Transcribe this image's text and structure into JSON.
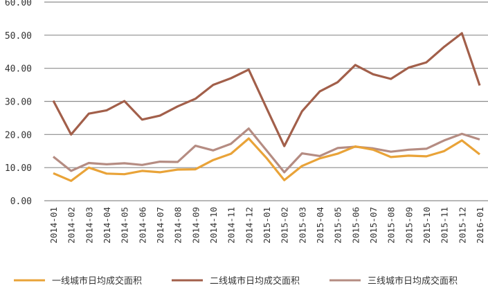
{
  "chart_data": {
    "type": "line",
    "title": "",
    "xlabel": "",
    "ylabel": "",
    "ylim": [
      0,
      60
    ],
    "yticks": [
      "0.00",
      "10.00",
      "20.00",
      "30.00",
      "40.00",
      "50.00",
      "60.00"
    ],
    "grid": true,
    "legend_position": "bottom",
    "categories": [
      "2014-01",
      "2014-02",
      "2014-03",
      "2014-04",
      "2014-05",
      "2014-06",
      "2014-07",
      "2014-08",
      "2014-09",
      "2014-10",
      "2014-11",
      "2014-12",
      "2015-01",
      "2015-02",
      "2015-03",
      "2015-04",
      "2015-05",
      "2015-06",
      "2015-07",
      "2015-08",
      "2015-09",
      "2015-10",
      "2015-11",
      "2015-12",
      "2016-01"
    ],
    "series": [
      {
        "name": "一线城市日均成交面积",
        "color": "#E9A338",
        "values": [
          8.3,
          6.0,
          10.0,
          8.2,
          8.0,
          9.0,
          8.6,
          9.4,
          9.5,
          12.3,
          14.2,
          18.8,
          12.9,
          6.2,
          10.5,
          12.8,
          14.2,
          16.4,
          15.4,
          13.2,
          13.6,
          13.4,
          15.0,
          18.2,
          14.0
        ]
      },
      {
        "name": "二线城市日均成交面积",
        "color": "#A25F4A",
        "values": [
          30.2,
          20.0,
          26.3,
          27.3,
          30.1,
          24.5,
          25.7,
          28.5,
          30.8,
          35.0,
          37.0,
          39.6,
          28.0,
          16.5,
          27.0,
          33.0,
          35.8,
          41.0,
          38.2,
          36.8,
          40.2,
          41.8,
          46.5,
          50.6,
          34.8
        ]
      },
      {
        "name": "三线城市日均成交面积",
        "color": "#B58C82",
        "values": [
          13.3,
          9.0,
          11.4,
          11.0,
          11.3,
          10.8,
          11.8,
          11.7,
          16.6,
          15.2,
          17.2,
          21.8,
          15.2,
          8.6,
          14.3,
          13.5,
          15.9,
          16.3,
          15.8,
          14.8,
          15.4,
          15.7,
          18.2,
          20.2,
          18.5
        ]
      }
    ]
  }
}
